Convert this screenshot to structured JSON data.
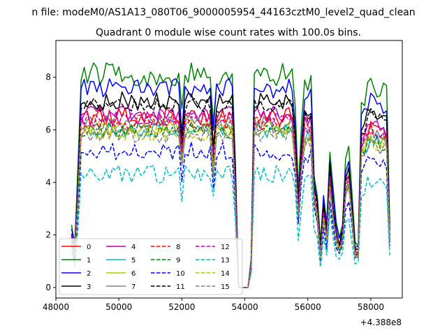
{
  "figure": {
    "suptitle": "n file: modeM0/AS1A13_080T06_9000005954_44163cztM0_level2_quad_clean",
    "offset_label": "+4.388e8"
  },
  "chart_data": {
    "type": "line",
    "title": "Quadrant 0 module wise count rates with 100.0s bins.",
    "xlabel": "",
    "ylabel": "",
    "x_offset": 438800000,
    "xlim": [
      48000,
      59000
    ],
    "ylim": [
      -0.4,
      9.4
    ],
    "x_ticks": [
      48000,
      50000,
      52000,
      54000,
      56000,
      58000
    ],
    "x_tick_labels": [
      "48000",
      "50000",
      "52000",
      "54000",
      "56000",
      "58000"
    ],
    "y_ticks": [
      0,
      2,
      4,
      6,
      8
    ],
    "y_tick_labels": [
      "0",
      "2",
      "4",
      "6",
      "8"
    ],
    "grid": false,
    "legend_position": "lower-left",
    "legend_columns": 4,
    "x_start": 48500,
    "x_step": 100,
    "segments": [
      [
        48500,
        53800
      ],
      [
        53800,
        54200
      ],
      [
        54200,
        58600
      ]
    ],
    "series": [
      {
        "name": "0",
        "color": "#ff0000",
        "dash": "solid",
        "level": 6.5,
        "amp": 0.35
      },
      {
        "name": "1",
        "color": "#008000",
        "dash": "solid",
        "level": 8.1,
        "amp": 0.45
      },
      {
        "name": "2",
        "color": "#0000ff",
        "dash": "solid",
        "level": 7.6,
        "amp": 0.4
      },
      {
        "name": "3",
        "color": "#000000",
        "dash": "solid",
        "level": 7.1,
        "amp": 0.35
      },
      {
        "name": "4",
        "color": "#bf00bf",
        "dash": "solid",
        "level": 6.6,
        "amp": 0.3
      },
      {
        "name": "5",
        "color": "#00bfbf",
        "dash": "solid",
        "level": 6.0,
        "amp": 0.3
      },
      {
        "name": "6",
        "color": "#bfbf00",
        "dash": "solid",
        "level": 6.1,
        "amp": 0.3
      },
      {
        "name": "7",
        "color": "#808080",
        "dash": "solid",
        "level": 6.2,
        "amp": 0.35
      },
      {
        "name": "8",
        "color": "#ff0000",
        "dash": "dashed",
        "level": 6.3,
        "amp": 0.3
      },
      {
        "name": "9",
        "color": "#008000",
        "dash": "dashed",
        "level": 6.0,
        "amp": 0.3
      },
      {
        "name": "10",
        "color": "#0000ff",
        "dash": "dashed",
        "level": 5.2,
        "amp": 0.35
      },
      {
        "name": "11",
        "color": "#000000",
        "dash": "dashed",
        "level": 6.9,
        "amp": 0.3
      },
      {
        "name": "12",
        "color": "#bf00bf",
        "dash": "dashed",
        "level": 6.4,
        "amp": 0.3
      },
      {
        "name": "13",
        "color": "#00bfbf",
        "dash": "dashed",
        "level": 4.3,
        "amp": 0.35
      },
      {
        "name": "14",
        "color": "#bfbf00",
        "dash": "dashed",
        "level": 5.9,
        "amp": 0.3
      },
      {
        "name": "15",
        "color": "#808080",
        "dash": "dashed",
        "level": 5.8,
        "amp": 0.3
      }
    ]
  }
}
